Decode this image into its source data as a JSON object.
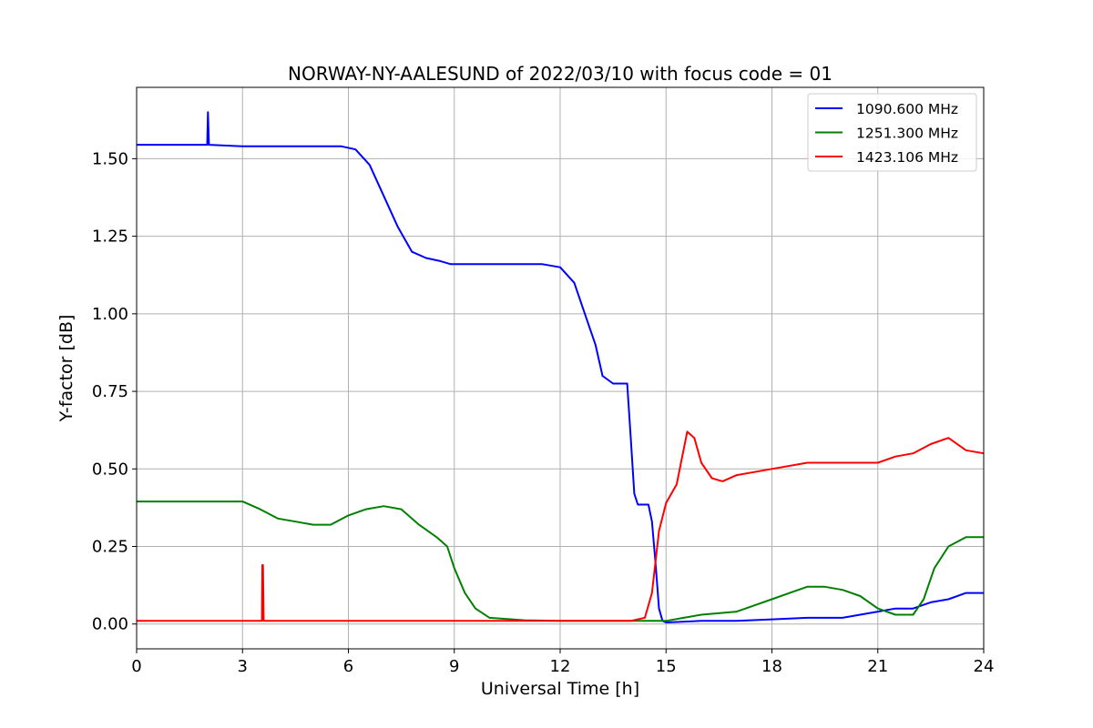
{
  "chart_data": {
    "type": "line",
    "title": "NORWAY-NY-AALESUND of 2022/03/10 with focus code = 01",
    "xlabel": "Universal Time [h]",
    "ylabel": "Y-factor [dB]",
    "xlim": [
      0,
      24
    ],
    "ylim": [
      -0.08,
      1.73
    ],
    "xticks": [
      0,
      3,
      6,
      9,
      12,
      15,
      18,
      21,
      24
    ],
    "xtick_labels": [
      "0",
      "3",
      "6",
      "9",
      "12",
      "15",
      "18",
      "21",
      "24"
    ],
    "yticks": [
      0.0,
      0.25,
      0.5,
      0.75,
      1.0,
      1.25,
      1.5
    ],
    "ytick_labels": [
      "0.00",
      "0.25",
      "0.50",
      "0.75",
      "1.00",
      "1.25",
      "1.50"
    ],
    "grid": true,
    "legend_position": "top-right",
    "series": [
      {
        "name": "1090.600 MHz",
        "color": "#0000ff",
        "x": [
          0,
          2.0,
          2.02,
          2.05,
          3,
          4.5,
          5.8,
          6.2,
          6.6,
          7.0,
          7.4,
          7.8,
          8.2,
          8.6,
          8.9,
          9.5,
          10,
          11,
          11.5,
          12.0,
          12.4,
          12.7,
          13.0,
          13.2,
          13.5,
          13.9,
          14.0,
          14.1,
          14.2,
          14.5,
          14.6,
          14.7,
          14.8,
          14.9,
          15.0,
          16,
          17,
          18,
          19,
          20,
          21,
          21.5,
          22,
          22.5,
          23,
          23.5,
          24
        ],
        "y": [
          1.545,
          1.545,
          1.65,
          1.545,
          1.54,
          1.54,
          1.54,
          1.53,
          1.48,
          1.38,
          1.28,
          1.2,
          1.18,
          1.17,
          1.16,
          1.16,
          1.16,
          1.16,
          1.16,
          1.15,
          1.1,
          1.0,
          0.9,
          0.8,
          0.775,
          0.775,
          0.6,
          0.42,
          0.385,
          0.385,
          0.33,
          0.2,
          0.05,
          0.01,
          0.005,
          0.01,
          0.01,
          0.015,
          0.02,
          0.02,
          0.04,
          0.05,
          0.05,
          0.07,
          0.08,
          0.1,
          0.1
        ]
      },
      {
        "name": "1251.300 MHz",
        "color": "#008000",
        "x": [
          0,
          2,
          3,
          3.5,
          4.0,
          4.5,
          5.0,
          5.5,
          6.0,
          6.5,
          7.0,
          7.5,
          8.0,
          8.5,
          8.8,
          9.0,
          9.3,
          9.6,
          10,
          11,
          12,
          13,
          14,
          14.5,
          15,
          15.5,
          16,
          17,
          17.5,
          18,
          18.5,
          19,
          19.5,
          20,
          20.5,
          21,
          21.5,
          22,
          22.3,
          22.6,
          23,
          23.5,
          24
        ],
        "y": [
          0.395,
          0.395,
          0.395,
          0.37,
          0.34,
          0.33,
          0.32,
          0.32,
          0.35,
          0.37,
          0.38,
          0.37,
          0.32,
          0.28,
          0.25,
          0.18,
          0.1,
          0.05,
          0.02,
          0.012,
          0.01,
          0.01,
          0.01,
          0.01,
          0.01,
          0.02,
          0.03,
          0.04,
          0.06,
          0.08,
          0.1,
          0.12,
          0.12,
          0.11,
          0.09,
          0.05,
          0.03,
          0.03,
          0.08,
          0.18,
          0.25,
          0.28,
          0.28
        ]
      },
      {
        "name": "1423.106 MHz",
        "color": "#ff0000",
        "x": [
          0,
          3.55,
          3.56,
          3.58,
          3.6,
          7,
          10,
          14.0,
          14.4,
          14.6,
          14.8,
          15.0,
          15.3,
          15.6,
          15.8,
          16.0,
          16.3,
          16.6,
          17,
          18,
          19,
          20,
          21,
          21.5,
          22,
          22.5,
          23,
          23.5,
          24
        ],
        "y": [
          0.01,
          0.01,
          0.19,
          0.19,
          0.01,
          0.01,
          0.01,
          0.01,
          0.02,
          0.1,
          0.3,
          0.39,
          0.45,
          0.62,
          0.6,
          0.52,
          0.47,
          0.46,
          0.48,
          0.5,
          0.52,
          0.52,
          0.52,
          0.54,
          0.55,
          0.58,
          0.6,
          0.56,
          0.55
        ]
      }
    ]
  }
}
